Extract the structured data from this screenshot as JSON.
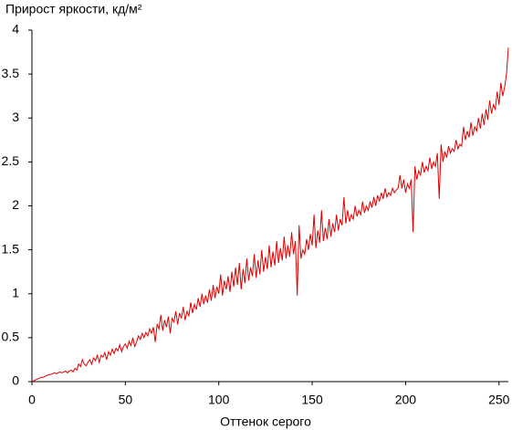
{
  "chart_data": {
    "type": "line",
    "title": "Прирост яркости, кд/м²",
    "x_label": "Оттенок серого",
    "xlim": [
      0,
      255
    ],
    "xticks": [
      0,
      50,
      100,
      150,
      200,
      250
    ],
    "ylim": [
      0,
      4
    ],
    "yticks": [
      0,
      0.5,
      1,
      1.5,
      2,
      2.5,
      3,
      3.5,
      4
    ],
    "grid": false,
    "x": [
      0,
      1,
      2,
      3,
      4,
      5,
      6,
      7,
      8,
      9,
      10,
      11,
      12,
      13,
      14,
      15,
      16,
      17,
      18,
      19,
      20,
      21,
      22,
      23,
      24,
      25,
      26,
      27,
      28,
      29,
      30,
      31,
      32,
      33,
      34,
      35,
      36,
      37,
      38,
      39,
      40,
      41,
      42,
      43,
      44,
      45,
      46,
      47,
      48,
      49,
      50,
      51,
      52,
      53,
      54,
      55,
      56,
      57,
      58,
      59,
      60,
      61,
      62,
      63,
      64,
      65,
      66,
      67,
      68,
      69,
      70,
      71,
      72,
      73,
      74,
      75,
      76,
      77,
      78,
      79,
      80,
      81,
      82,
      83,
      84,
      85,
      86,
      87,
      88,
      89,
      90,
      91,
      92,
      93,
      94,
      95,
      96,
      97,
      98,
      99,
      100,
      101,
      102,
      103,
      104,
      105,
      106,
      107,
      108,
      109,
      110,
      111,
      112,
      113,
      114,
      115,
      116,
      117,
      118,
      119,
      120,
      121,
      122,
      123,
      124,
      125,
      126,
      127,
      128,
      129,
      130,
      131,
      132,
      133,
      134,
      135,
      136,
      137,
      138,
      139,
      140,
      141,
      142,
      143,
      144,
      145,
      146,
      147,
      148,
      149,
      150,
      151,
      152,
      153,
      154,
      155,
      156,
      157,
      158,
      159,
      160,
      161,
      162,
      163,
      164,
      165,
      166,
      167,
      168,
      169,
      170,
      171,
      172,
      173,
      174,
      175,
      176,
      177,
      178,
      179,
      180,
      181,
      182,
      183,
      184,
      185,
      186,
      187,
      188,
      189,
      190,
      191,
      192,
      193,
      194,
      195,
      196,
      197,
      198,
      199,
      200,
      201,
      202,
      203,
      204,
      205,
      206,
      207,
      208,
      209,
      210,
      211,
      212,
      213,
      214,
      215,
      216,
      217,
      218,
      219,
      220,
      221,
      222,
      223,
      224,
      225,
      226,
      227,
      228,
      229,
      230,
      231,
      232,
      233,
      234,
      235,
      236,
      237,
      238,
      239,
      240,
      241,
      242,
      243,
      244,
      245,
      246,
      247,
      248,
      249,
      250,
      251,
      252,
      253,
      254,
      255
    ],
    "series": [
      {
        "color": "#e00000",
        "values": [
          0,
          0.01,
          0.02,
          0.03,
          0.04,
          0.05,
          0.05,
          0.06,
          0.07,
          0.08,
          0.08,
          0.09,
          0.1,
          0.09,
          0.1,
          0.11,
          0.1,
          0.11,
          0.12,
          0.1,
          0.12,
          0.13,
          0.11,
          0.15,
          0.13,
          0.2,
          0.17,
          0.25,
          0.2,
          0.18,
          0.22,
          0.25,
          0.2,
          0.27,
          0.24,
          0.3,
          0.22,
          0.3,
          0.28,
          0.33,
          0.25,
          0.34,
          0.3,
          0.37,
          0.32,
          0.38,
          0.35,
          0.42,
          0.34,
          0.4,
          0.43,
          0.38,
          0.46,
          0.41,
          0.5,
          0.4,
          0.45,
          0.52,
          0.48,
          0.55,
          0.5,
          0.56,
          0.52,
          0.6,
          0.55,
          0.62,
          0.45,
          0.65,
          0.6,
          0.76,
          0.58,
          0.7,
          0.62,
          0.74,
          0.55,
          0.72,
          0.68,
          0.8,
          0.65,
          0.78,
          0.72,
          0.85,
          0.7,
          0.8,
          0.75,
          0.9,
          0.78,
          0.88,
          0.82,
          0.95,
          0.85,
          1.0,
          0.88,
          0.98,
          0.9,
          1.05,
          0.92,
          1.1,
          0.95,
          1.08,
          1.0,
          1.22,
          0.98,
          1.15,
          1.05,
          1.2,
          1.02,
          1.25,
          1.08,
          1.3,
          1.1,
          1.35,
          1.05,
          1.28,
          1.12,
          1.4,
          1.15,
          1.3,
          1.2,
          1.45,
          1.18,
          1.38,
          1.22,
          1.5,
          1.25,
          1.42,
          1.28,
          1.55,
          1.3,
          1.48,
          1.32,
          1.6,
          1.35,
          1.52,
          1.38,
          1.65,
          1.4,
          1.55,
          1.42,
          1.7,
          1.45,
          1.6,
          0.98,
          1.78,
          1.4,
          1.5,
          1.45,
          1.62,
          1.5,
          1.68,
          1.55,
          1.9,
          1.52,
          1.72,
          1.58,
          1.95,
          1.6,
          1.75,
          1.62,
          1.85,
          1.65,
          1.8,
          1.7,
          1.9,
          1.72,
          1.85,
          1.78,
          2.1,
          1.8,
          1.95,
          1.82,
          1.9,
          1.85,
          2.0,
          1.88,
          1.95,
          1.9,
          2.05,
          1.92,
          2.0,
          1.95,
          2.05,
          1.98,
          2.1,
          2.0,
          2.12,
          2.05,
          2.15,
          2.08,
          2.2,
          2.1,
          2.15,
          2.12,
          2.2,
          2.15,
          2.18,
          2.2,
          2.35,
          2.2,
          2.3,
          2.15,
          2.25,
          2.2,
          2.3,
          1.7,
          2.45,
          2.3,
          2.4,
          2.35,
          2.5,
          2.38,
          2.45,
          2.4,
          2.55,
          2.42,
          2.5,
          2.45,
          2.6,
          2.08,
          2.7,
          2.5,
          2.62,
          2.55,
          2.68,
          2.6,
          2.65,
          2.62,
          2.75,
          2.65,
          2.7,
          2.68,
          2.9,
          2.75,
          2.85,
          2.78,
          2.95,
          2.8,
          2.9,
          2.85,
          3.0,
          2.88,
          3.05,
          2.92,
          3.1,
          2.98,
          3.2,
          3.05,
          3.15,
          3.1,
          3.3,
          3.15,
          3.4,
          3.25,
          3.35,
          3.5,
          3.8
        ]
      }
    ]
  }
}
